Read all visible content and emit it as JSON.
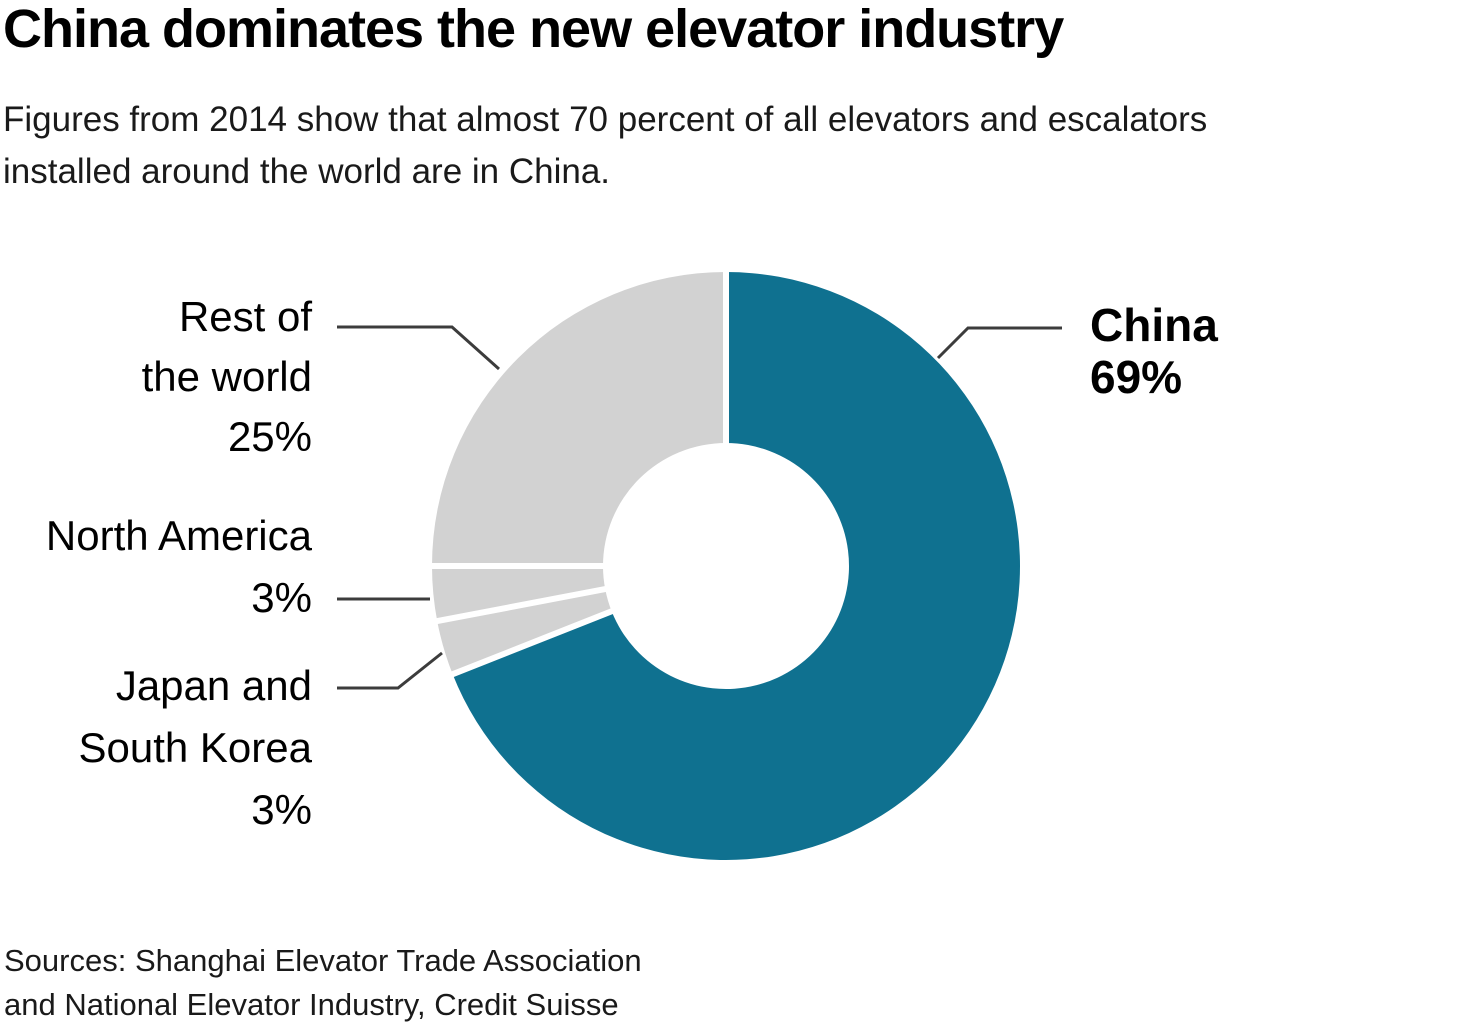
{
  "header": {
    "title": "China dominates the new elevator industry",
    "subtitle_line1": "Figures from 2014 show that almost 70 percent of all elevators and escalators",
    "subtitle_line2": "installed around the world are in China."
  },
  "chart_data": {
    "type": "pie",
    "subtype": "donut",
    "title": "China dominates the new elevator industry",
    "unit": "percent",
    "direction": "clockwise",
    "start_angle_deg": 0,
    "inner_radius_ratio": 0.418,
    "separator_color": "#FFFFFF",
    "series": [
      {
        "label": "China",
        "value": 69,
        "color": "#0F7190"
      },
      {
        "label": "Japan and South Korea",
        "value": 3,
        "color": "#D2D2D2"
      },
      {
        "label": "North America",
        "value": 3,
        "color": "#D2D2D2"
      },
      {
        "label": "Rest of the world",
        "value": 25,
        "color": "#D2D2D2"
      }
    ]
  },
  "callouts": {
    "rest_of_world": {
      "line1": "Rest of",
      "line2": "the world",
      "line3": "25%"
    },
    "north_america": {
      "line1": "North America",
      "line2": "3%"
    },
    "japan_south_korea": {
      "line1": "Japan and",
      "line2": "South Korea",
      "line3": "3%"
    },
    "china": {
      "line1": "China",
      "line2": "69%"
    }
  },
  "footer": {
    "source_line1": "Sources: Shanghai Elevator Trade Association",
    "source_line2": "and National Elevator Industry, Credit Suisse"
  },
  "colors": {
    "accent_teal": "#0F7190",
    "neutral_gray": "#D2D2D2",
    "leader_line": "#3C3C3C",
    "background": "#FFFFFF"
  }
}
